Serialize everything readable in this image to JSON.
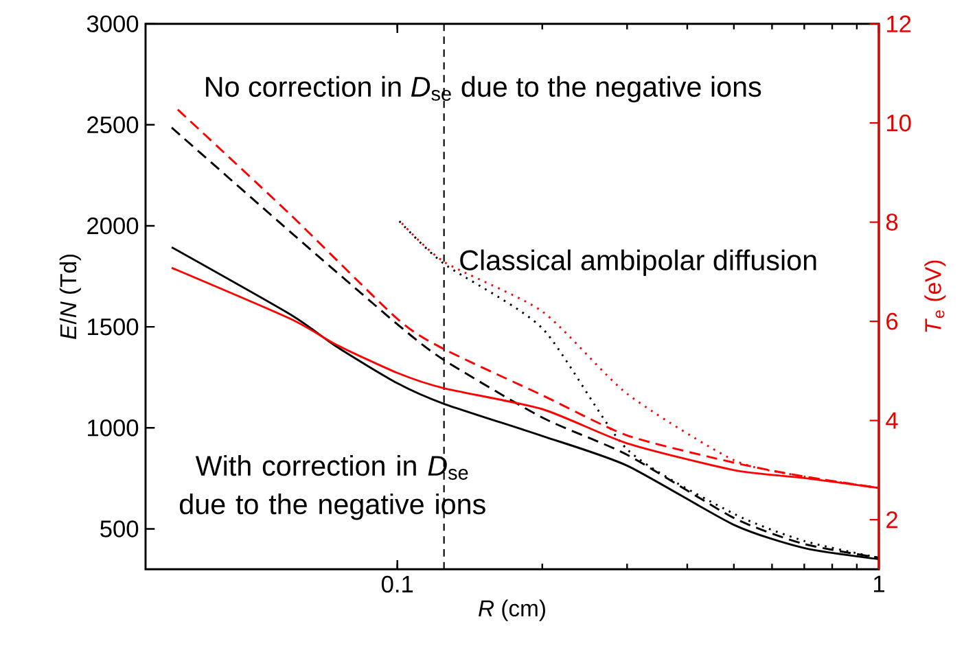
{
  "chart_data": {
    "type": "line",
    "xlabel": "*R* (cm)",
    "ylabel": "*E*/*N* (Td)",
    "y2label": "*T*$_{e}$ (eV)",
    "log": "x",
    "xlim": [
      0.03,
      1
    ],
    "xticks": [
      0.1,
      1
    ],
    "ylim": [
      300,
      3000
    ],
    "yticks": [
      500,
      1000,
      1500,
      2000,
      2500,
      3000
    ],
    "y2lim": [
      1,
      12
    ],
    "y2ticks": [
      2,
      4,
      6,
      8,
      10,
      12
    ],
    "series": [
      {
        "color": "#000000",
        "line_style": "solid",
        "x": [
          0.034,
          0.06,
          0.075,
          0.1,
          0.125,
          0.2,
          0.3,
          0.5,
          0.7,
          1
        ],
        "values": [
          1894,
          1561,
          1400,
          1221,
          1119,
          960,
          813,
          520,
          405,
          350
        ]
      },
      {
        "color": "#ff0000",
        "line_style": "solid",
        "axis": "y2",
        "x": [
          0.034,
          0.06,
          0.075,
          0.1,
          0.125,
          0.2,
          0.3,
          0.5,
          0.7,
          1
        ],
        "values": [
          7.08,
          6.05,
          5.52,
          4.96,
          4.65,
          4.23,
          3.54,
          3.0,
          2.84,
          2.64
        ]
      },
      {
        "color": "#000000",
        "line_style": "dashed",
        "x": [
          0.034,
          0.06,
          0.1,
          0.125,
          0.2,
          0.3,
          0.5,
          0.7,
          1
        ],
        "values": [
          2486,
          1969,
          1513,
          1336,
          1051,
          867,
          554,
          425,
          357
        ]
      },
      {
        "color": "#ff0000",
        "line_style": "dashed",
        "axis": "y2",
        "x": [
          0.035,
          0.06,
          0.1,
          0.125,
          0.2,
          0.3,
          0.5,
          0.7,
          1
        ],
        "values": [
          10.27,
          8.15,
          6.05,
          5.44,
          4.51,
          3.7,
          3.15,
          2.87,
          2.64
        ]
      },
      {
        "color": "#000000",
        "line_style": "dotted",
        "x": [
          0.101,
          0.125,
          0.2,
          0.3,
          0.5,
          0.7,
          1
        ],
        "values": [
          2023,
          1812,
          1493,
          894,
          575,
          440,
          357
        ]
      },
      {
        "color": "#ff0000",
        "line_style": "dotted",
        "axis": "y2",
        "x": [
          0.101,
          0.125,
          0.2,
          0.3,
          0.5,
          0.7,
          1
        ],
        "values": [
          8.03,
          7.2,
          6.2,
          4.54,
          3.2,
          2.87,
          2.64
        ]
      }
    ],
    "ref_lines": [
      {
        "axis": "x",
        "value": 0.125,
        "color": "#000000",
        "line_style": "dashed"
      }
    ],
    "annotations": [
      "No correction in *D*$_{se}$ due to the negative ions",
      "Classical ambipolar diffusion",
      "With correction in *D*$_{se}$ due to the negative ions"
    ]
  }
}
